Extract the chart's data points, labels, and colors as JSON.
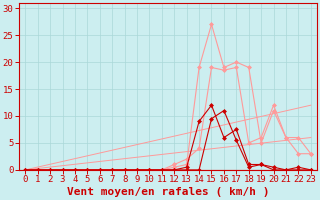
{
  "x_labels": [
    0,
    1,
    2,
    3,
    4,
    5,
    6,
    7,
    8,
    9,
    10,
    11,
    12,
    13,
    14,
    15,
    16,
    17,
    18,
    19,
    20,
    21,
    22,
    23
  ],
  "xlabel": "Vent moyen/en rafales ( km/h )",
  "ylabel_ticks": [
    0,
    5,
    10,
    15,
    20,
    25,
    30
  ],
  "ylim": [
    0,
    31
  ],
  "xlim": [
    -0.5,
    23.5
  ],
  "bg_color": "#cceef0",
  "grid_color": "#aad8d8",
  "light_pink": "#ff9999",
  "dark_red": "#cc0000",
  "diag1_y_end": 12,
  "diag2_y_end": 6,
  "peak1_y": [
    0,
    0,
    0,
    0,
    0,
    0,
    0,
    0,
    0,
    0,
    0,
    0,
    0.5,
    1,
    19,
    27,
    19,
    20,
    19,
    5,
    11,
    6,
    6,
    3
  ],
  "peak2_y": [
    0,
    0,
    0,
    0,
    0,
    0,
    0,
    0,
    0,
    0,
    0,
    0,
    1,
    2,
    4,
    19,
    18.5,
    19,
    5,
    6,
    12,
    6,
    3,
    3
  ],
  "dark1_y": [
    0,
    0,
    0,
    0,
    0,
    0,
    0,
    0,
    0,
    0,
    0,
    0,
    0,
    0.5,
    9,
    12,
    6,
    7.5,
    1,
    1,
    0.5,
    0,
    0.5,
    0
  ],
  "dark2_y": [
    0,
    0,
    0,
    0,
    0,
    0,
    0,
    0,
    0,
    0,
    0,
    0,
    0,
    0,
    0,
    9.5,
    11,
    5.5,
    0.5,
    1,
    0,
    0,
    0,
    0
  ],
  "marker": "D",
  "markersize": 2,
  "linewidth_light": 0.8,
  "linewidth_dark": 0.8,
  "tick_fontsize": 6.5,
  "xlabel_fontsize": 8
}
